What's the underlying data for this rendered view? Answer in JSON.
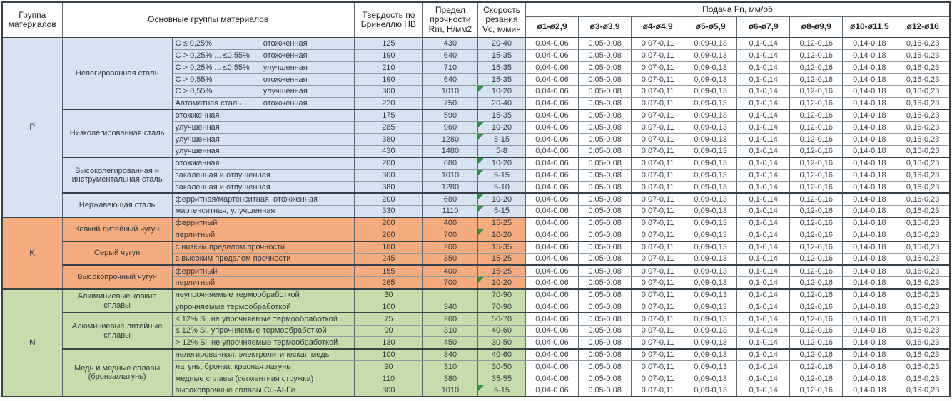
{
  "header": {
    "col_group": "Группа материалов",
    "col_name": "Основные группы материалов",
    "col_hb": "Твердость по Бринеллю HB",
    "col_rm": "Предел прочности Rm, Н/мм2",
    "col_vc": "Скорость резания Vc, м/мин",
    "feed_title": "Подача Fn, мм/об",
    "feed_cols": [
      "ø1-ø2,9",
      "ø3-ø3,9",
      "ø4-ø4,9",
      "ø5-ø5,9",
      "ø6-ø7,9",
      "ø8-ø9,9",
      "ø10-ø11,5",
      "ø12-ø16"
    ]
  },
  "feeds": [
    "0,04-0,06",
    "0,05-0,08",
    "0,07-0,11",
    "0,09-0,13",
    "0,1-0,14",
    "0,12-0,16",
    "0,14-0,18",
    "0,16-0,23"
  ],
  "note_color": "#2f9440",
  "groups": [
    {
      "letter": "P",
      "color": "#d7e3f1",
      "subgroups": [
        {
          "name": "Нелегированная сталь",
          "rows": [
            {
              "c1": "C ≤ 0,25%",
              "c2": "отожженная",
              "hb": "125",
              "rm": "430",
              "vc": "20-40",
              "note": false
            },
            {
              "c1": "C > 0,25% ... ≤0,55%",
              "c2": "отожженная",
              "hb": "190",
              "rm": "640",
              "vc": "15-35",
              "note": false
            },
            {
              "c1": "C > 0,25% ... ≤0,55%",
              "c2": "улучшенная",
              "hb": "210",
              "rm": "710",
              "vc": "15-35",
              "note": false
            },
            {
              "c1": "C > 0,55%",
              "c2": "отожженная",
              "hb": "190",
              "rm": "640",
              "vc": "15-35",
              "note": false
            },
            {
              "c1": "C > 0,55%",
              "c2": "улучшенная",
              "hb": "300",
              "rm": "1010",
              "vc": "10-20",
              "note": true
            },
            {
              "c1": "Автоматная сталь",
              "c2": "отожженная",
              "hb": "220",
              "rm": "750",
              "vc": "20-40",
              "note": false
            }
          ]
        },
        {
          "name": "Низколегированная сталь",
          "rows": [
            {
              "c1": "отожженная",
              "hb": "175",
              "rm": "590",
              "vc": "15-35",
              "note": false
            },
            {
              "c1": "улучшенная",
              "hb": "285",
              "rm": "960",
              "vc": "10-20",
              "note": true
            },
            {
              "c1": "улучшенная",
              "hb": "380",
              "rm": "1280",
              "vc": "8-15",
              "note": true
            },
            {
              "c1": "улучшенная",
              "hb": "430",
              "rm": "1480",
              "vc": "5-8",
              "note": false
            }
          ]
        },
        {
          "name": "Высоколегированная и инструментальная сталь",
          "rows": [
            {
              "c1": "отожженная",
              "hb": "200",
              "rm": "680",
              "vc": "10-20",
              "note": true
            },
            {
              "c1": "закаленная и отпущенная",
              "hb": "300",
              "rm": "1010",
              "vc": "5-15",
              "note": true
            },
            {
              "c1": "закаленная и отпущенная",
              "hb": "380",
              "rm": "1280",
              "vc": "5-10",
              "note": false
            }
          ]
        },
        {
          "name": "Нержавеющая сталь",
          "rows": [
            {
              "c1": "ферритная/мартенситная, отожженная",
              "hb": "200",
              "rm": "680",
              "vc": "10-20",
              "note": true
            },
            {
              "c1": "мартенситная, улучшенная",
              "hb": "330",
              "rm": "1110",
              "vc": "5-15",
              "note": true
            }
          ]
        }
      ]
    },
    {
      "letter": "K",
      "color": "#f4ab7d",
      "subgroups": [
        {
          "name": "Ковкий литейный чугун",
          "rows": [
            {
              "c1": "ферритный",
              "hb": "200",
              "rm": "400",
              "vc": "15-25",
              "note": false
            },
            {
              "c1": "перлитный",
              "hb": "260",
              "rm": "700",
              "vc": "10-20",
              "note": true
            }
          ]
        },
        {
          "name": "Серый чугун",
          "rows": [
            {
              "c1": "с низким пределом прочности",
              "hb": "180",
              "rm": "200",
              "vc": "15-35",
              "note": false
            },
            {
              "c1": "с высоким пределом прочности",
              "hb": "245",
              "rm": "350",
              "vc": "15-25",
              "note": false
            }
          ]
        },
        {
          "name": "Высокопрочный чугун",
          "rows": [
            {
              "c1": "ферритный",
              "hb": "155",
              "rm": "400",
              "vc": "15-25",
              "note": false
            },
            {
              "c1": "перлитный",
              "hb": "265",
              "rm": "700",
              "vc": "10-20",
              "note": true
            }
          ]
        }
      ]
    },
    {
      "letter": "N",
      "color": "#c5ddab",
      "subgroups": [
        {
          "name": "Алюминиевые ковкие сплавы",
          "rows": [
            {
              "c1": "неупрочняемые термообработкой",
              "hb": "30",
              "rm": "",
              "vc": "70-90",
              "note": false
            },
            {
              "c1": "упрочняемые термообработкой",
              "hb": "100",
              "rm": "340",
              "vc": "70-90",
              "note": false
            }
          ]
        },
        {
          "name": "Алюминиевые литейные сплавы",
          "rows": [
            {
              "c1": "≤ 12% Si, не упрочняемые термообработкой",
              "hb": "75",
              "rm": "260",
              "vc": "50-70",
              "note": false
            },
            {
              "c1": "≤ 12% Si, упрочняемые термообработкой",
              "hb": "90",
              "rm": "310",
              "vc": "40-60",
              "note": false
            },
            {
              "c1": "> 12% Si, не упрочняемые термообработкой",
              "hb": "130",
              "rm": "450",
              "vc": "30-50",
              "note": false
            }
          ]
        },
        {
          "name": "Медь и медные сплавы (бронза/латунь)",
          "rows": [
            {
              "c1": "нелегированная, электролитическая медь",
              "hb": "100",
              "rm": "340",
              "vc": "40-60",
              "note": false
            },
            {
              "c1": "латунь, бронза, красная латунь",
              "hb": "90",
              "rm": "310",
              "vc": "30-50",
              "note": false
            },
            {
              "c1": "медные сплавы (сегментная стружка)",
              "hb": "110",
              "rm": "380",
              "vc": "35-55",
              "note": false
            },
            {
              "c1": "высокопрочные сплавы Cu-Al-Fe",
              "hb": "300",
              "rm": "1010",
              "vc": "5-15",
              "note": true
            }
          ]
        }
      ]
    }
  ]
}
